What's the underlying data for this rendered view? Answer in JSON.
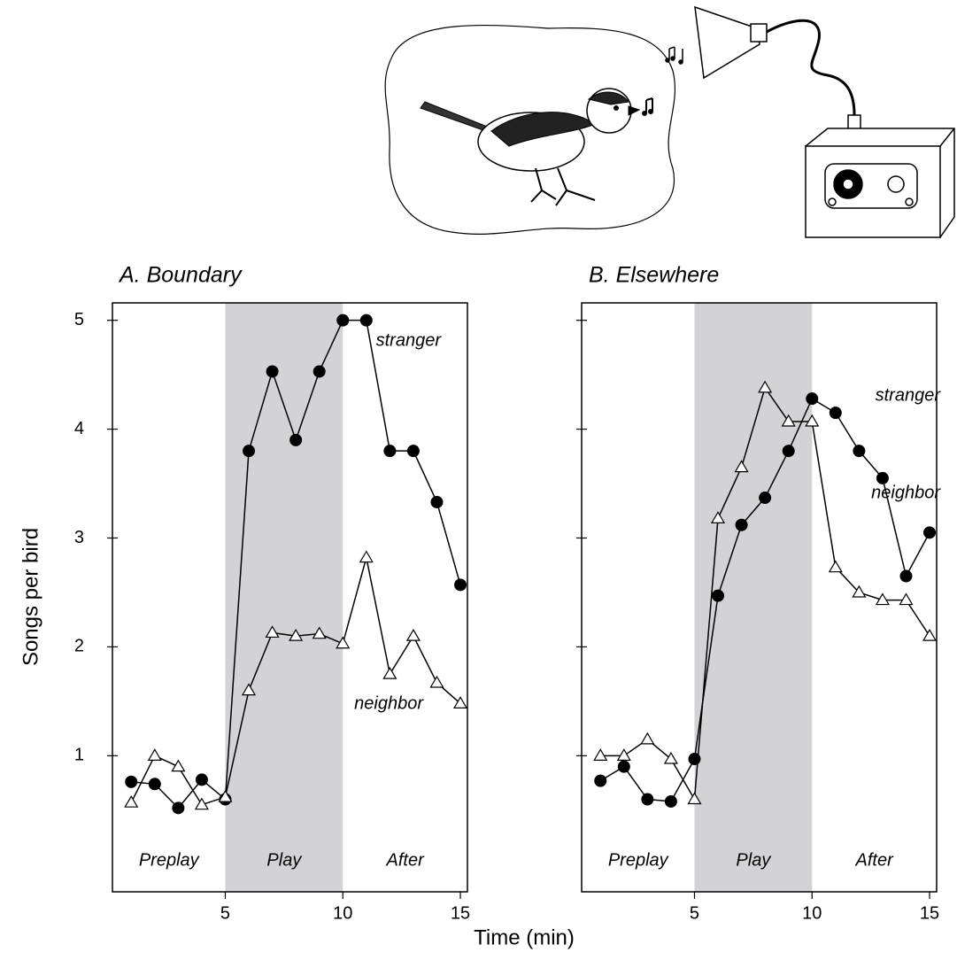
{
  "axis_labels": {
    "x": "Time (min)",
    "y": "Songs per bird"
  },
  "chart_data": [
    {
      "type": "line",
      "title": "A. Boundary",
      "xlim": [
        0.2,
        15.3
      ],
      "xticks": [
        5,
        10,
        15
      ],
      "ylim": [
        -0.25,
        5.16
      ],
      "yticks": [
        1,
        2,
        3,
        4,
        5
      ],
      "ytick_labels": true,
      "shade": [
        5,
        10
      ],
      "phases": [
        "Preplay",
        "Play",
        "After"
      ],
      "series": [
        {
          "name": "stranger",
          "color": "#000000",
          "marker": "circle",
          "x": [
            1,
            2,
            3,
            4,
            5,
            6,
            7,
            8,
            9,
            10,
            11,
            12,
            13,
            14,
            15
          ],
          "values": [
            0.76,
            0.74,
            0.52,
            0.78,
            0.6,
            3.8,
            4.53,
            3.9,
            4.53,
            5.0,
            5.0,
            3.8,
            3.8,
            3.33,
            2.57
          ]
        },
        {
          "name": "neighbor",
          "color": "#000000",
          "marker": "triangle",
          "x": [
            1,
            2,
            3,
            4,
            5,
            6,
            7,
            8,
            9,
            10,
            11,
            12,
            13,
            14,
            15
          ],
          "values": [
            0.57,
            1.0,
            0.9,
            0.55,
            0.62,
            1.6,
            2.13,
            2.1,
            2.12,
            2.03,
            2.82,
            1.75,
            2.1,
            1.67,
            1.48
          ]
        }
      ]
    },
    {
      "type": "line",
      "title": "B. Elsewhere",
      "xlim": [
        0.2,
        15.3
      ],
      "xticks": [
        5,
        10,
        15
      ],
      "ylim": [
        -0.25,
        5.16
      ],
      "yticks": [
        1,
        2,
        3,
        4,
        5
      ],
      "ytick_labels": false,
      "shade": [
        5,
        10
      ],
      "phases": [
        "Preplay",
        "Play",
        "After"
      ],
      "series": [
        {
          "name": "stranger",
          "color": "#000000",
          "marker": "circle",
          "x": [
            1,
            2,
            3,
            4,
            5,
            6,
            7,
            8,
            9,
            10,
            11,
            12,
            13,
            14,
            15
          ],
          "values": [
            0.77,
            0.9,
            0.6,
            0.58,
            0.97,
            2.47,
            3.12,
            3.37,
            3.8,
            4.28,
            4.15,
            3.8,
            3.55,
            2.65,
            3.05
          ]
        },
        {
          "name": "neighbor",
          "color": "#000000",
          "marker": "triangle",
          "x": [
            1,
            2,
            3,
            4,
            5,
            6,
            7,
            8,
            9,
            10,
            11,
            12,
            13,
            14,
            15
          ],
          "values": [
            1.0,
            1.0,
            1.15,
            0.97,
            0.6,
            3.18,
            3.65,
            4.38,
            4.07,
            4.07,
            2.73,
            2.5,
            2.43,
            2.43,
            2.1
          ]
        }
      ]
    }
  ]
}
